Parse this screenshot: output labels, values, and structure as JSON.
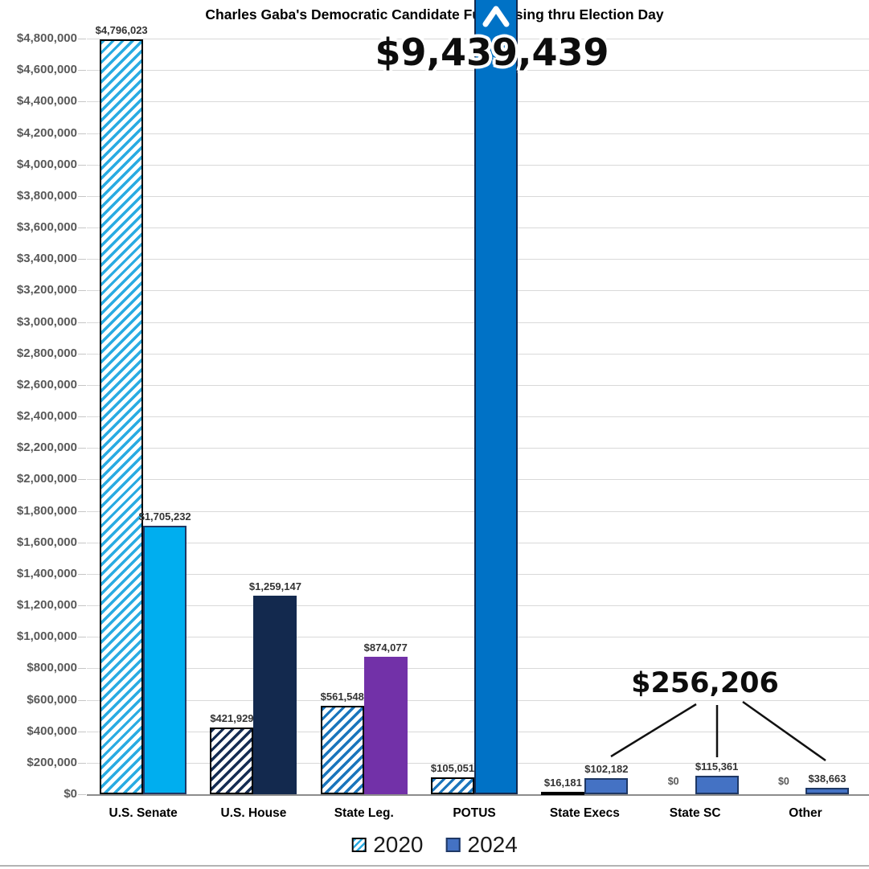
{
  "title": "Charles Gaba's Democratic Candidate Fundraising thru Election Day",
  "annotations": {
    "potus_2024_total": "$9,439,439",
    "small_categories_2024_total": "$256,206"
  },
  "legend": {
    "items": [
      {
        "label": "2020",
        "style": "hatched"
      },
      {
        "label": "2024",
        "style": "solid"
      }
    ]
  },
  "colors": {
    "hatch_2020": [
      "#29ABE2",
      "#152C52",
      "#1B75BC",
      "#1B75BC",
      "#29ABE2",
      "#29ABE2",
      "#29ABE2"
    ],
    "solid_2024": [
      "#00AEEF",
      "#13294E",
      "#7231A8",
      "#0072C6",
      "#4472C4",
      "#4472C4",
      "#4472C4"
    ],
    "border_2024": [
      "#1F3864",
      "#13294E",
      "#7231A8",
      "#12294F",
      "#1F3864",
      "#1F3864",
      "#1F3864"
    ],
    "hatch_border": "#000000",
    "gridline": "#D9D9D9",
    "axis_line": "#8C8C8C",
    "tick_label": "#595959",
    "value_label": "#333333"
  },
  "chart_data": {
    "type": "bar",
    "title": "Charles Gaba's Democratic Candidate Fundraising thru Election Day",
    "categories": [
      "U.S. Senate",
      "U.S. House",
      "State Leg.",
      "POTUS",
      "State Execs",
      "State SC",
      "Other"
    ],
    "series": [
      {
        "name": "2020",
        "style": "hatched",
        "values": [
          4796023,
          421929,
          561548,
          105051,
          16181,
          0,
          0
        ],
        "labels": [
          "$4,796,023",
          "$421,929",
          "$561,548",
          "$105,051",
          "$16,181",
          "$0",
          "$0"
        ]
      },
      {
        "name": "2024",
        "style": "solid",
        "values": [
          1705232,
          1259147,
          874077,
          9439439,
          102182,
          115361,
          38663
        ],
        "labels": [
          "$1,705,232",
          "$1,259,147",
          "$874,077",
          "$9,439,439",
          "$102,182",
          "$115,361",
          "$38,663"
        ]
      }
    ],
    "ylim": [
      0,
      4800000
    ],
    "ytick_step": 200000,
    "ytick_labels": [
      "$0",
      "$200,000",
      "$400,000",
      "$600,000",
      "$800,000",
      "$1,000,000",
      "$1,200,000",
      "$1,400,000",
      "$1,600,000",
      "$1,800,000",
      "$2,000,000",
      "$2,200,000",
      "$2,400,000",
      "$2,600,000",
      "$2,800,000",
      "$3,000,000",
      "$3,200,000",
      "$3,400,000",
      "$3,600,000",
      "$3,800,000",
      "$4,000,000",
      "$4,200,000",
      "$4,400,000",
      "$4,600,000",
      "$4,800,000"
    ],
    "grid": true,
    "legend_position": "bottom",
    "annotation_notes": {
      "overflow_bar": "POTUS 2024 bar exceeds axis maximum; marked with white chevron and total $9,439,439",
      "callout": "$256,206 is the combined 2024 total of State Execs, State SC and Other"
    }
  }
}
